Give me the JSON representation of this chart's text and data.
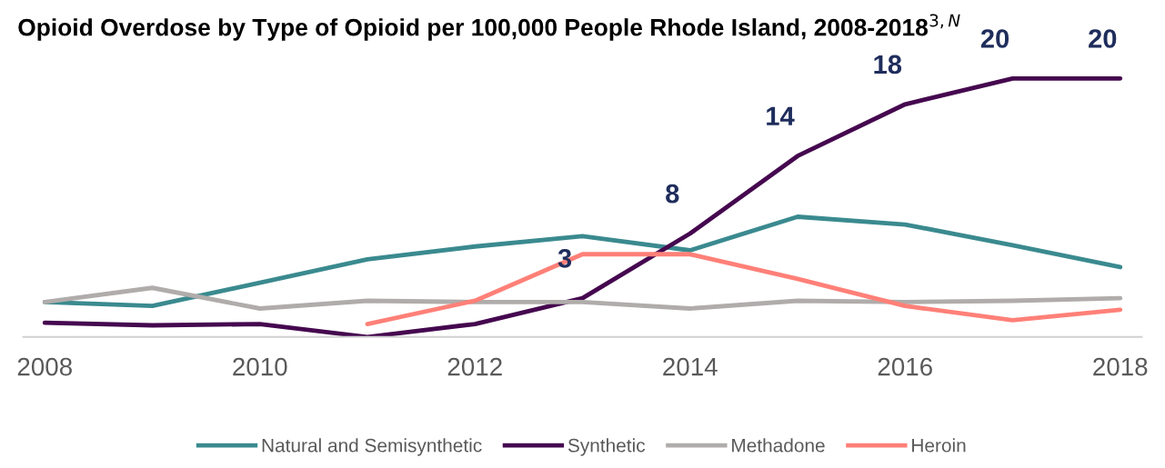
{
  "chart_data": {
    "type": "line",
    "title": "Opioid Overdose by Type of Opioid per 100,000 People Rhode Island, 2008-2018$^{3,N}$",
    "categories": [
      "2008",
      null,
      "2010",
      null,
      "2012",
      null,
      "2014",
      null,
      "2016",
      null,
      "2018"
    ],
    "legend": "bottom",
    "grid": false,
    "marker": "none",
    "line_style": "solid",
    "series": [
      {
        "name": "Natural and Semisynthetic",
        "color": "#3a8a8f",
        "values": [
          2.7,
          2.4,
          4.2,
          6.0,
          7.0,
          7.8,
          6.7,
          9.3,
          8.7,
          7.1,
          5.4
        ]
      },
      {
        "name": "Synthetic",
        "color": "#45084f",
        "values": [
          1.1,
          0.9,
          1.0,
          0,
          1.0,
          3,
          8,
          14,
          18,
          20,
          20
        ],
        "value_labels": [
          null,
          null,
          null,
          null,
          null,
          "3",
          "8",
          "14",
          "18",
          "20",
          "20"
        ]
      },
      {
        "name": "Methadone",
        "color": "#b0acab",
        "values": [
          2.7,
          3.8,
          2.2,
          2.8,
          2.7,
          2.7,
          2.2,
          2.8,
          2.7,
          2.8,
          3.0
        ]
      },
      {
        "name": "Heroin",
        "color": "#ff8078",
        "values": [
          null,
          null,
          null,
          1.0,
          2.8,
          6.4,
          6.4,
          4.5,
          2.4,
          1.3,
          2.1
        ]
      }
    ]
  }
}
